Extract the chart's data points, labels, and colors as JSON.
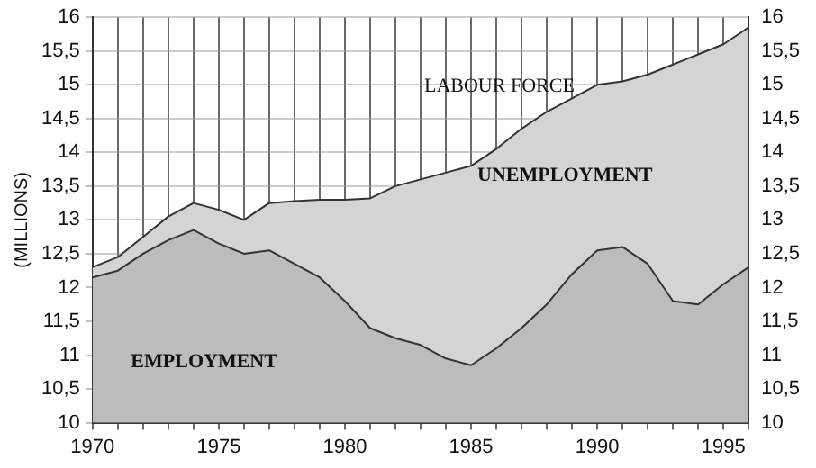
{
  "chart_data": {
    "type": "area",
    "ylabel": "(MILLIONS)",
    "annotations": [
      "UNEMPLOYMENT"
    ],
    "x": [
      1970,
      1971,
      1972,
      1973,
      1974,
      1975,
      1976,
      1977,
      1978,
      1979,
      1980,
      1981,
      1982,
      1983,
      1984,
      1985,
      1986,
      1987,
      1988,
      1989,
      1990,
      1991,
      1992,
      1993,
      1994,
      1995,
      1996
    ],
    "series": [
      {
        "name": "LABOUR FORCE",
        "color": "#d4d4d4",
        "values": [
          12.3,
          12.45,
          12.75,
          13.05,
          13.25,
          13.15,
          13.0,
          13.25,
          13.28,
          13.3,
          13.3,
          13.32,
          13.5,
          13.6,
          13.7,
          13.8,
          14.05,
          14.35,
          14.6,
          14.8,
          15.0,
          15.05,
          15.15,
          15.3,
          15.45,
          15.6,
          15.85
        ]
      },
      {
        "name": "EMPLOYMENT",
        "color": "#bcbcbc",
        "values": [
          12.15,
          12.25,
          12.5,
          12.7,
          12.85,
          12.65,
          12.5,
          12.55,
          12.35,
          12.15,
          11.8,
          11.4,
          11.25,
          11.15,
          10.95,
          10.85,
          11.1,
          11.4,
          11.75,
          12.2,
          12.55,
          12.6,
          12.35,
          11.8,
          11.75,
          12.05,
          12.3
        ]
      }
    ],
    "xlim": [
      1970,
      1996
    ],
    "xticks": [
      1970,
      {
        "value": 1971,
        "label": null
      },
      {
        "value": 1972,
        "label": null
      },
      {
        "value": 1973,
        "label": null
      },
      {
        "value": 1974,
        "label": null
      },
      1975,
      {
        "value": 1976,
        "label": null
      },
      {
        "value": 1977,
        "label": null
      },
      {
        "value": 1978,
        "label": null
      },
      {
        "value": 1979,
        "label": null
      },
      1980,
      {
        "value": 1981,
        "label": null
      },
      {
        "value": 1982,
        "label": null
      },
      {
        "value": 1983,
        "label": null
      },
      {
        "value": 1984,
        "label": null
      },
      1985,
      {
        "value": 1986,
        "label": null
      },
      {
        "value": 1987,
        "label": null
      },
      {
        "value": 1988,
        "label": null
      },
      {
        "value": 1989,
        "label": null
      },
      1990,
      {
        "value": 1991,
        "label": null
      },
      {
        "value": 1992,
        "label": null
      },
      {
        "value": 1993,
        "label": null
      },
      {
        "value": 1994,
        "label": null
      },
      1995,
      {
        "value": 1996,
        "label": null
      }
    ],
    "ylim": [
      10,
      16
    ],
    "yticks": [
      10,
      {
        "value": 10.5,
        "label": "10,5"
      },
      11,
      {
        "value": 11.5,
        "label": "11,5"
      },
      12,
      {
        "value": 12.5,
        "label": "12,5"
      },
      13,
      {
        "value": 13.5,
        "label": "13,5"
      },
      14,
      {
        "value": 14.5,
        "label": "14,5"
      },
      15,
      {
        "value": 15.5,
        "label": "15,5"
      },
      16
    ],
    "y2lim": [
      10,
      16
    ],
    "y2ticks": [
      10,
      {
        "value": 10.5,
        "label": "10,5"
      },
      11,
      {
        "value": 11.5,
        "label": "11,5"
      },
      12,
      {
        "value": 12.5,
        "label": "12,5"
      },
      13,
      {
        "value": 13.5,
        "label": "13,5"
      },
      14,
      {
        "value": 14.5,
        "label": "14,5"
      },
      15,
      {
        "value": 15.5,
        "label": "15,5"
      },
      16
    ],
    "grid": true,
    "legend": false
  }
}
